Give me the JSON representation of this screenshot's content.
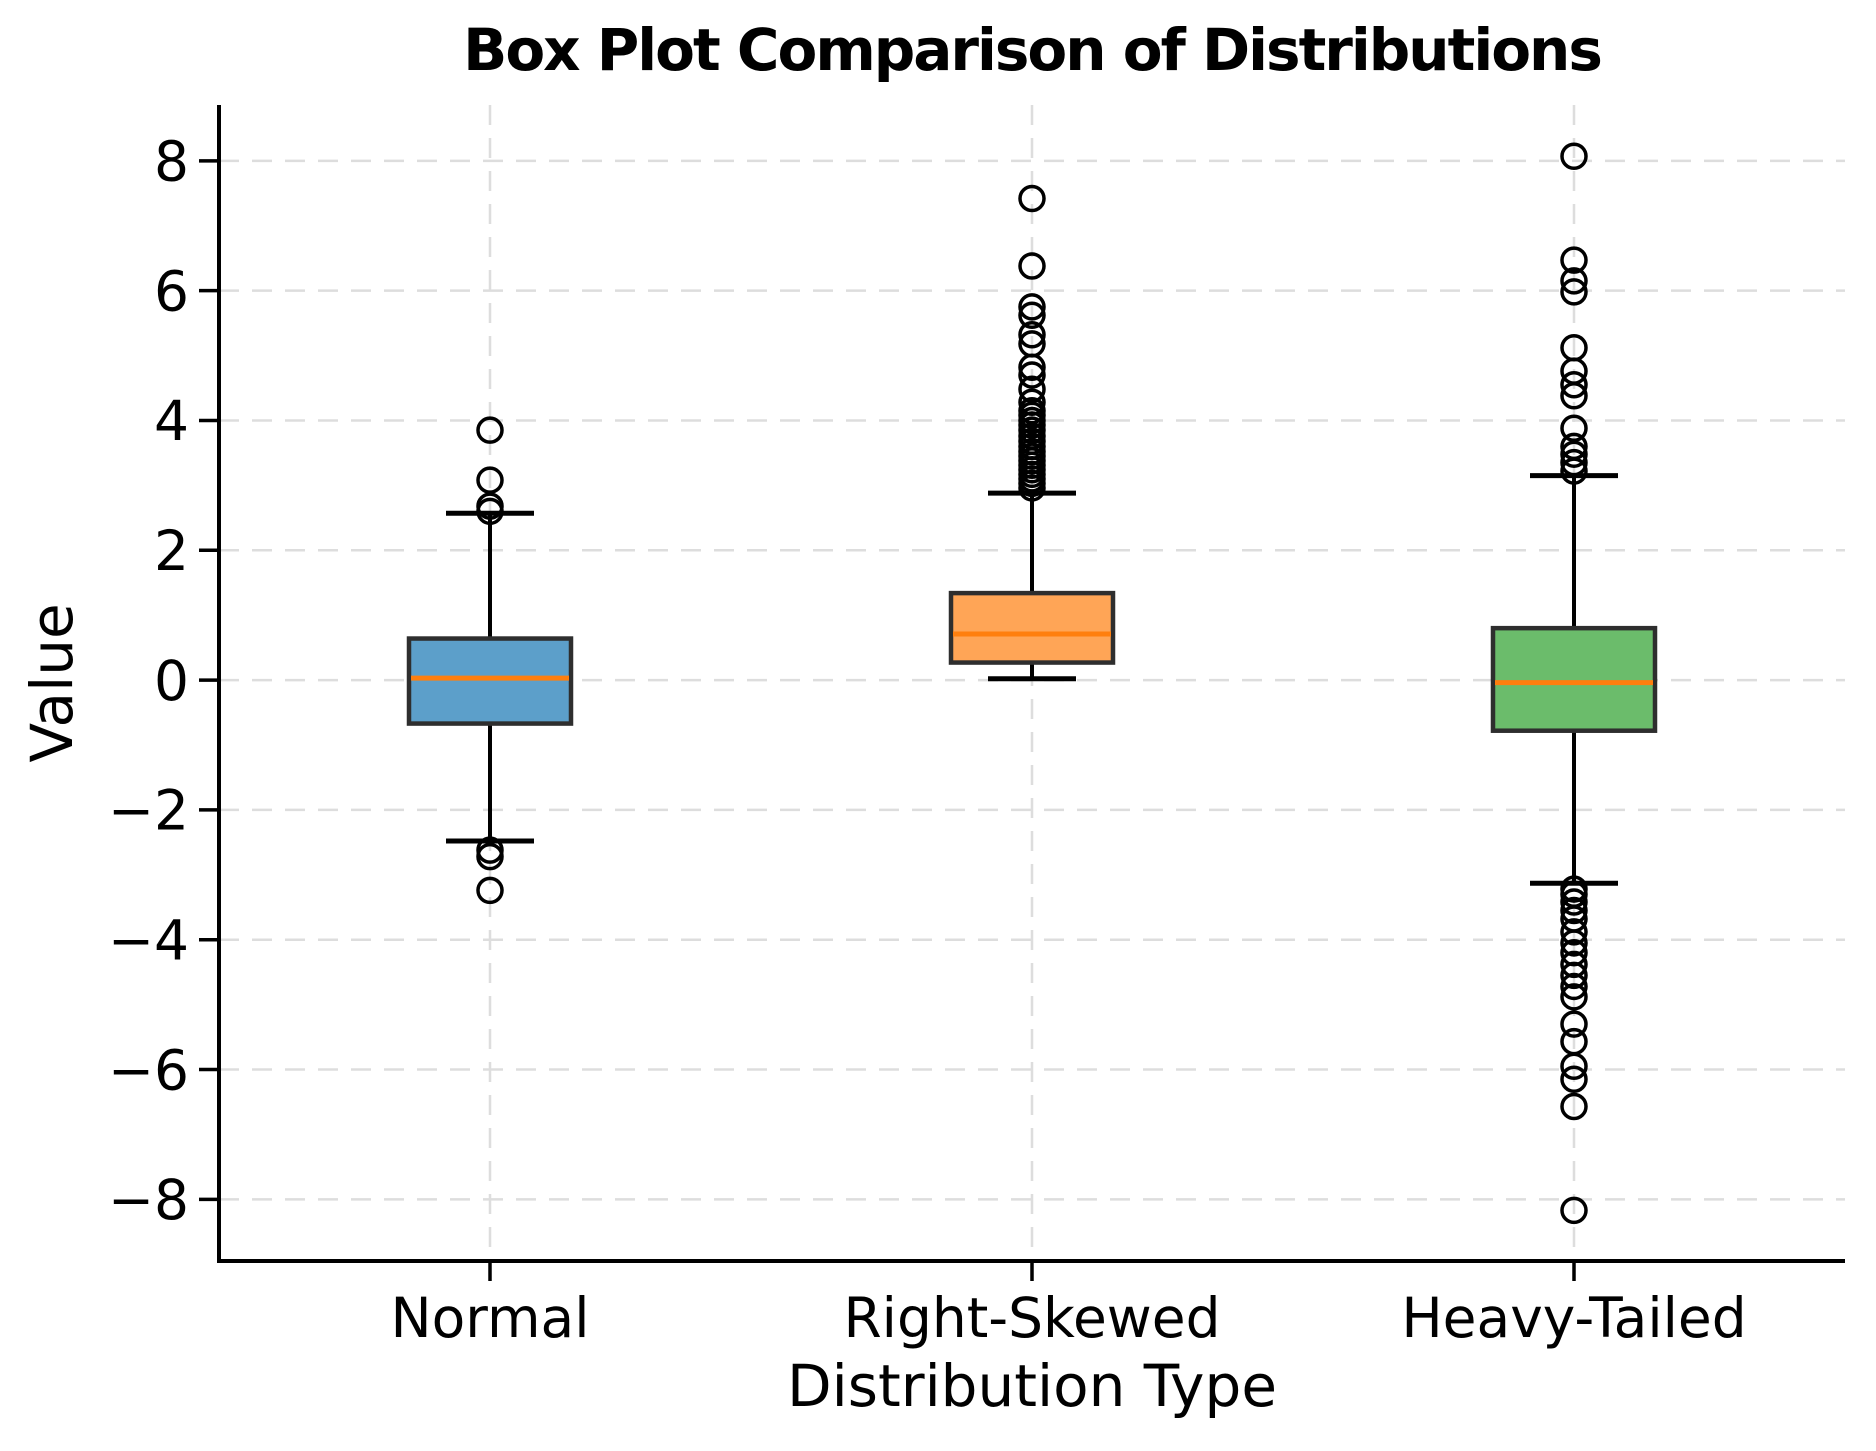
{
  "chart_data": {
    "type": "box",
    "title": "Box Plot Comparison of Distributions",
    "xlabel": "Distribution Type",
    "ylabel": "Value",
    "categories": [
      "Normal",
      "Right-Skewed",
      "Heavy-Tailed"
    ],
    "ylim": [
      -8.95,
      8.86
    ],
    "yticks": [
      -8,
      -6,
      -4,
      -2,
      0,
      2,
      4,
      6,
      8
    ],
    "grid": {
      "horizontal": true,
      "vertical": true,
      "style": "dashed"
    },
    "legend": "none",
    "series": [
      {
        "name": "Normal",
        "color": "#5C9FCA",
        "q1": -0.67,
        "median": 0.03,
        "q3": 0.64,
        "whisker_low": -2.48,
        "whisker_high": 2.57,
        "outliers": [
          3.85,
          3.08,
          2.68,
          2.6,
          -2.62,
          -2.72,
          -3.24
        ]
      },
      {
        "name": "Right-Skewed",
        "color": "#FFA556",
        "q1": 0.27,
        "median": 0.71,
        "q3": 1.34,
        "whisker_low": 0.02,
        "whisker_high": 2.88,
        "outliers": [
          7.42,
          6.38,
          5.75,
          5.62,
          5.32,
          5.18,
          4.82,
          4.7,
          4.48,
          4.28,
          4.15,
          4.08,
          4.0,
          3.93,
          3.85,
          3.76,
          3.68,
          3.6,
          3.52,
          3.45,
          3.38,
          3.31,
          3.24,
          3.17,
          3.1,
          3.03,
          2.96
        ]
      },
      {
        "name": "Heavy-Tailed",
        "color": "#6BBC6B",
        "q1": -0.78,
        "median": -0.04,
        "q3": 0.8,
        "whisker_low": -3.13,
        "whisker_high": 3.15,
        "outliers": [
          8.07,
          6.47,
          6.15,
          5.98,
          5.12,
          4.76,
          4.55,
          4.38,
          3.88,
          3.6,
          3.48,
          3.35,
          3.22,
          -3.22,
          -3.3,
          -3.42,
          -3.55,
          -3.68,
          -3.88,
          -4.05,
          -4.2,
          -4.38,
          -4.55,
          -4.72,
          -4.88,
          -5.3,
          -5.57,
          -5.95,
          -6.15,
          -6.57,
          -8.17
        ]
      }
    ],
    "styles": {
      "median_color": "#FF7F0E",
      "box_edge_color": "#2E2E2E",
      "whisker_color": "#000000",
      "flier_edge_color": "#000000",
      "grid_color": "#DDDDDD",
      "axis_color": "#000000",
      "text_color": "#000000",
      "background": "#FFFFFF"
    }
  }
}
